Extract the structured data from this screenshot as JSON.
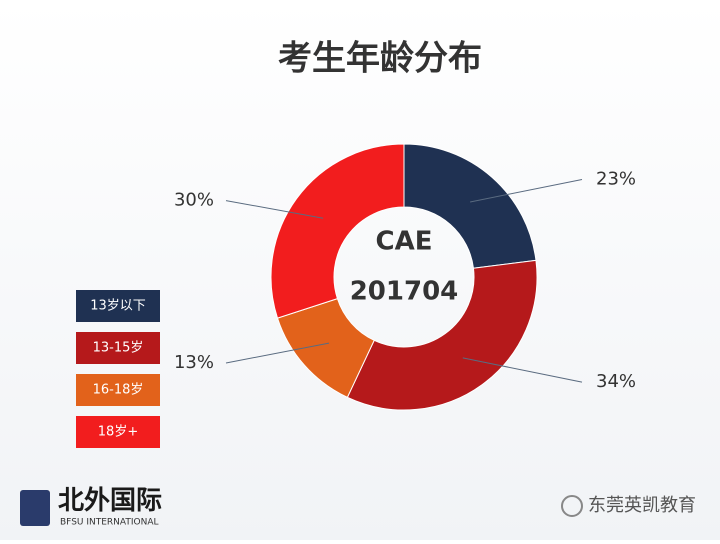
{
  "chart_data": {
    "type": "donut",
    "title": "考生年龄分布",
    "center_labels": [
      "CAE",
      "201704"
    ],
    "categories": [
      "13岁以下",
      "13-15岁",
      "16-18岁",
      "18岁+"
    ],
    "values": [
      23,
      34,
      13,
      30
    ],
    "value_labels": [
      "23%",
      "34%",
      "13%",
      "30%"
    ],
    "colors": [
      "#1f3152",
      "#b5191b",
      "#e2621b",
      "#f21d1e"
    ],
    "legend": "left"
  },
  "footer": {
    "logo": "北外国际",
    "logo_subtitle": "BFSU INTERNATIONAL",
    "watermark": "东莞英凯教育"
  }
}
